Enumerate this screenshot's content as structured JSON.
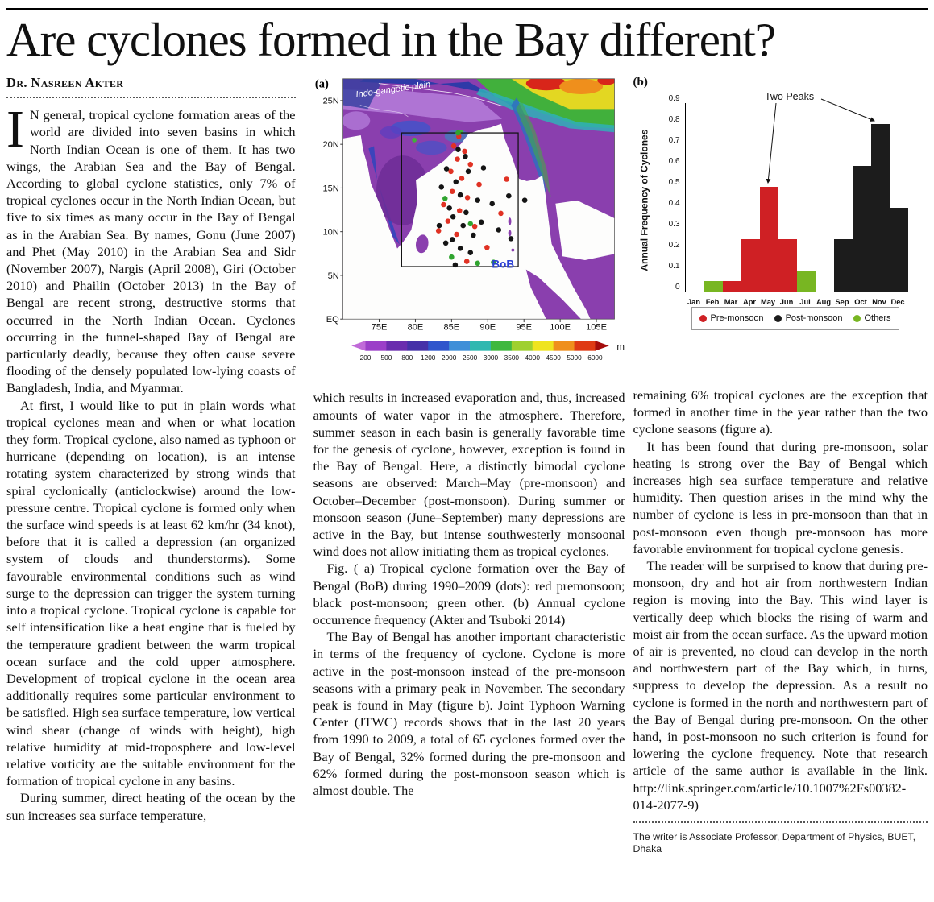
{
  "page": {
    "headline": "Are cyclones formed in the Bay different?",
    "byline": "Dr. Nasreen Akter",
    "footer": "The writer is Associate Professor, Department of Physics, BUET, Dhaka"
  },
  "article": {
    "dropcap": "I",
    "col1": [
      "N general, tropical cyclone formation areas of the world are divided into seven basins in which North Indian Ocean is one of them. It has two wings, the Arabian Sea and the Bay of Bengal. According to global cyclone statistics, only 7% of tropical cyclones occur in the North Indian Ocean, but five to six times as many occur in the Bay of Bengal as in the Arabian Sea. By names, Gonu (June 2007) and Phet (May 2010) in the Arabian Sea and Sidr (November 2007), Nargis (April 2008), Giri (October 2010) and Phailin (October 2013) in the Bay of Bengal are recent strong, destructive storms that occurred in the North Indian Ocean. Cyclones occurring in the funnel-shaped Bay of Bengal are particularly deadly, because they often cause severe flooding of the densely populated low-lying coasts of Bangladesh, India, and Myanmar.",
      "At first, I would like to put in plain words what tropical cyclones mean and when or what location they form. Tropical cyclone, also named as typhoon or hurricane (depending on location), is an intense rotating system characterized by strong winds that spiral cyclonically (anticlockwise) around the low-pressure centre. Tropical cyclone is formed only when the surface wind speeds is at least 62 km/hr (34 knot), before that it is called a depression (an organized system of clouds and thunderstorms). Some favourable environmental conditions such as wind surge to the depression can trigger the system turning into a tropical cyclone. Tropical cyclone is capable for self intensification like a heat engine that is fueled by the temperature gradient between the warm tropical ocean surface and the cold upper atmosphere. Development of tropical cyclone in the ocean area additionally requires some particular environment to be satisfied. High sea surface temperature, low vertical wind shear (change of winds with height), high relative humidity at mid-troposphere and low-level relative vorticity are the suitable environment for the formation of tropical cyclone in any basins.",
      "During summer, direct heating of the ocean by the sun increases sea surface temperature,"
    ],
    "col2": [
      "which results in increased evaporation and, thus, increased amounts of water vapor in the atmosphere. Therefore, summer season in each basin is generally favorable time for the genesis of cyclone, however, exception is found in the Bay of Bengal. Here, a distinctly bimodal cyclone seasons are observed: March–May (pre-monsoon) and October–December (post-monsoon). During summer or monsoon season (June–September) many depressions are active in the Bay, but intense southwesterly monsoonal wind does not allow initiating them as tropical cyclones.",
      "Fig. ( a) Tropical cyclone formation over the Bay of Bengal (BoB) during 1990–2009 (dots): red premonsoon; black post-monsoon; green other. (b) Annual cyclone occurrence frequency (Akter and Tsuboki 2014)",
      "The Bay of Bengal has another important characteristic in terms of the frequency of cyclone. Cyclone is more active in the post-monsoon instead of the pre-monsoon seasons with a primary peak in November. The secondary peak is found in May (figure b). Joint Typhoon Warning Center (JTWC) records shows that in the last 20 years from 1990 to 2009, a total of 65 cyclones formed over the Bay of Bengal, 32% formed during the pre-monsoon and 62% formed during the post-monsoon season which is almost double. The"
    ],
    "col3": [
      "remaining 6% tropical cyclones are the exception that formed in another time in the year rather than the two cyclone seasons (figure a).",
      "It has been found that during pre-monsoon, solar heating is strong over the Bay of Bengal which increases high sea surface temperature and relative humidity. Then question arises in the mind why the number of cyclone is less in pre-monsoon than that in post-monsoon even though pre-monsoon has more favorable environment for tropical cyclone genesis.",
      "The reader will be surprised to know that during pre-monsoon, dry and hot air from northwestern Indian region is moving into the Bay. This wind layer is vertically deep which blocks the rising of warm and moist air from the ocean surface. As the upward motion of air is prevented, no cloud can develop in the north and northwestern part of the Bay which, in turns, suppress to develop the depression. As a result no cyclone is formed in the north and northwestern part of the Bay of Bengal during pre-monsoon. On the other hand, in post-monsoon no such criterion is found for lowering the cyclone frequency. Note that research article of the same author is available in the link. http://link.springer.com/article/10.1007%2Fs00382-014-2077-9)"
    ]
  },
  "figure_a": {
    "label": "(a)",
    "region_label": "Indo-gangetic plain",
    "bob_label": "BoB",
    "y_ticks": [
      {
        "v": 25,
        "label": "25N"
      },
      {
        "v": 20,
        "label": "20N"
      },
      {
        "v": 15,
        "label": "15N"
      },
      {
        "v": 10,
        "label": "10N"
      },
      {
        "v": 5,
        "label": "5N"
      },
      {
        "v": 0,
        "label": "EQ"
      }
    ],
    "x_ticks": [
      {
        "v": 75,
        "label": "75E"
      },
      {
        "v": 80,
        "label": "80E"
      },
      {
        "v": 85,
        "label": "85E"
      },
      {
        "v": 90,
        "label": "90E"
      },
      {
        "v": 95,
        "label": "95E"
      },
      {
        "v": 100,
        "label": "100E"
      },
      {
        "v": 105,
        "label": "105E"
      }
    ],
    "colorbar": {
      "ticks": [
        "200",
        "500",
        "800",
        "1200",
        "2000",
        "2500",
        "3000",
        "3500",
        "4000",
        "4500",
        "5000",
        "6000"
      ],
      "unit": "m",
      "colors": [
        "#c06ad8",
        "#9b3fc8",
        "#6a2dae",
        "#4531a8",
        "#2f55cc",
        "#3f8fd8",
        "#2fb8b0",
        "#3fb83f",
        "#9fd02f",
        "#efe41f",
        "#ef8f1c",
        "#df3a14",
        "#a40c0c"
      ]
    },
    "dot_colors": {
      "pre": "#e03224",
      "post": "#141414",
      "other": "#2fa42f"
    },
    "dots": [
      {
        "lon": 86.0,
        "lat": 20.9,
        "t": "pre"
      },
      {
        "lon": 85.3,
        "lat": 19.8,
        "t": "pre"
      },
      {
        "lon": 86.8,
        "lat": 19.2,
        "t": "pre"
      },
      {
        "lon": 85.8,
        "lat": 18.3,
        "t": "pre"
      },
      {
        "lon": 87.6,
        "lat": 17.7,
        "t": "pre"
      },
      {
        "lon": 84.9,
        "lat": 16.9,
        "t": "pre"
      },
      {
        "lon": 86.4,
        "lat": 16.1,
        "t": "pre"
      },
      {
        "lon": 88.8,
        "lat": 15.4,
        "t": "pre"
      },
      {
        "lon": 85.1,
        "lat": 14.6,
        "t": "pre"
      },
      {
        "lon": 87.2,
        "lat": 13.9,
        "t": "pre"
      },
      {
        "lon": 83.9,
        "lat": 13.1,
        "t": "pre"
      },
      {
        "lon": 86.1,
        "lat": 12.4,
        "t": "pre"
      },
      {
        "lon": 91.8,
        "lat": 12.1,
        "t": "pre"
      },
      {
        "lon": 84.5,
        "lat": 11.2,
        "t": "pre"
      },
      {
        "lon": 88.2,
        "lat": 10.6,
        "t": "pre"
      },
      {
        "lon": 85.7,
        "lat": 9.7,
        "t": "pre"
      },
      {
        "lon": 89.9,
        "lat": 8.2,
        "t": "pre"
      },
      {
        "lon": 87.1,
        "lat": 6.6,
        "t": "pre"
      },
      {
        "lon": 83.2,
        "lat": 10.1,
        "t": "pre"
      },
      {
        "lon": 92.6,
        "lat": 16.0,
        "t": "pre"
      },
      {
        "lon": 85.9,
        "lat": 19.4,
        "t": "post"
      },
      {
        "lon": 86.9,
        "lat": 18.6,
        "t": "post"
      },
      {
        "lon": 84.3,
        "lat": 17.2,
        "t": "post"
      },
      {
        "lon": 87.3,
        "lat": 16.9,
        "t": "post"
      },
      {
        "lon": 85.6,
        "lat": 15.7,
        "t": "post"
      },
      {
        "lon": 83.6,
        "lat": 15.1,
        "t": "post"
      },
      {
        "lon": 86.2,
        "lat": 14.2,
        "t": "post"
      },
      {
        "lon": 88.6,
        "lat": 13.6,
        "t": "post"
      },
      {
        "lon": 84.7,
        "lat": 12.7,
        "t": "post"
      },
      {
        "lon": 87.0,
        "lat": 12.2,
        "t": "post"
      },
      {
        "lon": 85.2,
        "lat": 11.7,
        "t": "post"
      },
      {
        "lon": 89.1,
        "lat": 11.1,
        "t": "post"
      },
      {
        "lon": 86.6,
        "lat": 10.7,
        "t": "post"
      },
      {
        "lon": 83.3,
        "lat": 10.7,
        "t": "post"
      },
      {
        "lon": 88.0,
        "lat": 9.6,
        "t": "post"
      },
      {
        "lon": 85.1,
        "lat": 9.1,
        "t": "post"
      },
      {
        "lon": 90.6,
        "lat": 13.2,
        "t": "post"
      },
      {
        "lon": 91.5,
        "lat": 10.2,
        "t": "post"
      },
      {
        "lon": 84.2,
        "lat": 8.7,
        "t": "post"
      },
      {
        "lon": 86.2,
        "lat": 8.1,
        "t": "post"
      },
      {
        "lon": 92.9,
        "lat": 14.1,
        "t": "post"
      },
      {
        "lon": 95.1,
        "lat": 13.6,
        "t": "post"
      },
      {
        "lon": 93.2,
        "lat": 9.2,
        "t": "post"
      },
      {
        "lon": 87.6,
        "lat": 7.6,
        "t": "post"
      },
      {
        "lon": 85.5,
        "lat": 6.2,
        "t": "post"
      },
      {
        "lon": 89.4,
        "lat": 17.3,
        "t": "post"
      },
      {
        "lon": 85.9,
        "lat": 21.3,
        "t": "other"
      },
      {
        "lon": 84.1,
        "lat": 13.8,
        "t": "other"
      },
      {
        "lon": 87.6,
        "lat": 10.9,
        "t": "other"
      },
      {
        "lon": 85.0,
        "lat": 7.1,
        "t": "other"
      },
      {
        "lon": 88.6,
        "lat": 6.4,
        "t": "other"
      },
      {
        "lon": 90.8,
        "lat": 6.5,
        "t": "other"
      }
    ]
  },
  "chart_data": {
    "type": "bar",
    "figure_label": "(b)",
    "annotation": "Two Peaks",
    "ylabel": "Annual Frequency of Cyclones",
    "categories": [
      "Jan",
      "Feb",
      "Mar",
      "Apr",
      "May",
      "Jun",
      "Jul",
      "Aug",
      "Sep",
      "Oct",
      "Nov",
      "Dec"
    ],
    "series": [
      {
        "name": "Pre-monsoon",
        "color": "#cf2024",
        "values": [
          0,
          0,
          0.05,
          0.25,
          0.5,
          0.25,
          0,
          0,
          0,
          0,
          0,
          0
        ]
      },
      {
        "name": "Post-monsoon",
        "color": "#1c1c1c",
        "values": [
          0,
          0,
          0,
          0,
          0,
          0,
          0,
          0,
          0.25,
          0.6,
          0.8,
          0.4
        ]
      },
      {
        "name": "Others",
        "color": "#78b622",
        "values": [
          0,
          0.05,
          0,
          0,
          0,
          0,
          0.1,
          0,
          0,
          0,
          0,
          0
        ]
      }
    ],
    "ylim": [
      0,
      0.9
    ],
    "yticks": [
      0,
      0.1,
      0.2,
      0.3,
      0.4,
      0.5,
      0.6,
      0.7,
      0.8,
      0.9
    ],
    "grid": false,
    "legend_position": "bottom"
  }
}
